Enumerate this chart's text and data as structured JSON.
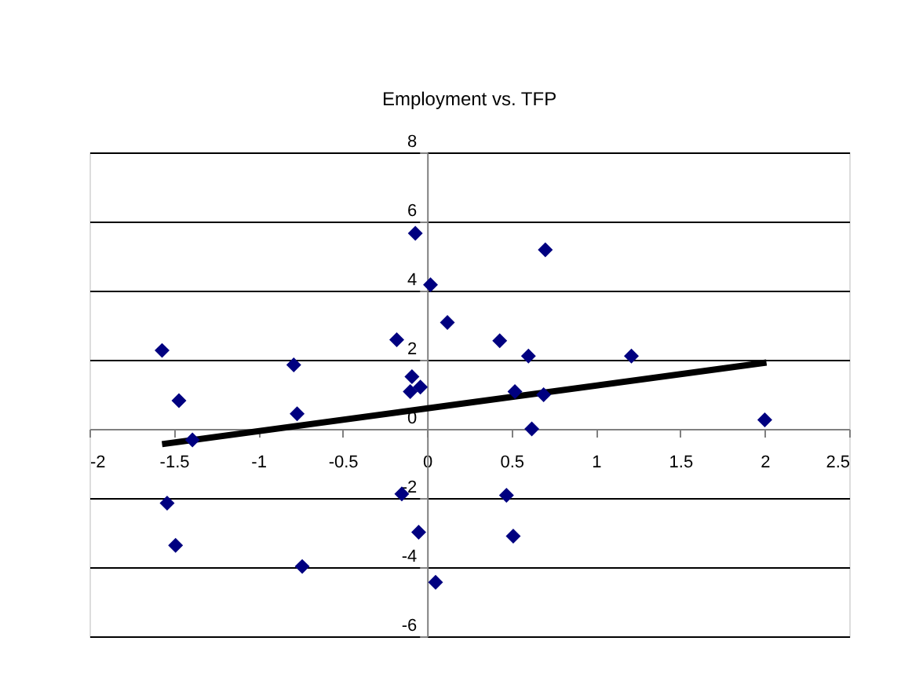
{
  "chart_data": {
    "type": "scatter",
    "title": "Employment vs. TFP",
    "xlim": [
      -2,
      2.5
    ],
    "xticks": [
      -2,
      -1.5,
      -1,
      -0.5,
      0,
      0.5,
      1,
      1.5,
      2,
      2.5
    ],
    "ylim": [
      -6,
      8
    ],
    "yticks": [
      -6,
      -4,
      -2,
      0,
      2,
      4,
      6,
      8
    ],
    "grid": "y",
    "marker": "diamond",
    "series": [
      {
        "color": "#000080",
        "x": [
          -1.57,
          -1.47,
          -1.39,
          -1.54,
          -1.49,
          -0.79,
          -0.77,
          -0.74,
          -0.18,
          -0.07,
          0.02,
          0.12,
          -0.09,
          -0.1,
          -0.04,
          -0.15,
          -0.05,
          0.05,
          0.43,
          0.6,
          0.7,
          0.52,
          0.69,
          0.62,
          1.21,
          2.0,
          0.47,
          0.51
        ],
        "values": [
          2.27,
          0.82,
          -0.32,
          -2.15,
          -3.37,
          1.85,
          0.44,
          -3.98,
          2.58,
          5.66,
          4.17,
          3.08,
          1.51,
          1.08,
          1.21,
          -1.88,
          -2.99,
          -4.44,
          2.55,
          2.11,
          5.18,
          1.08,
          0.99,
          0.0,
          2.11,
          0.26,
          -1.92,
          -3.1
        ]
      },
      {
        "type": "line",
        "color": "#000000",
        "line_style": "solid",
        "marker": "none",
        "x": [
          -1.57,
          2.01
        ],
        "values": [
          -0.44,
          1.92
        ]
      }
    ]
  }
}
